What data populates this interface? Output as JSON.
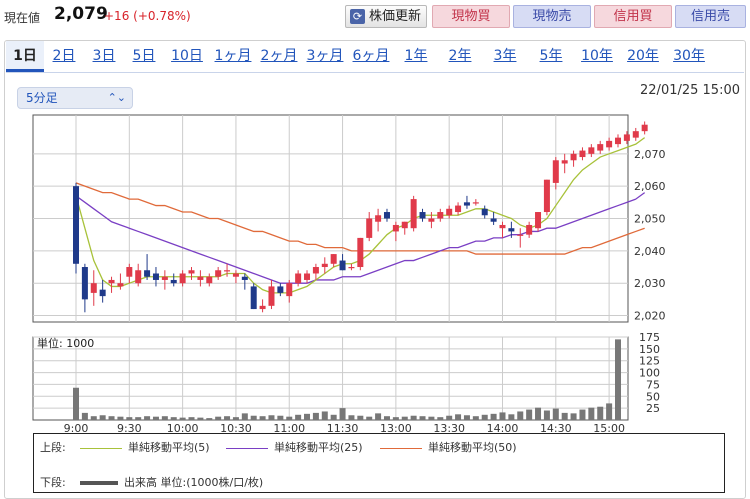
{
  "header": {
    "price_label": "現在値",
    "price_value": "2,079",
    "price_change": "+16 (+0.78%)",
    "refresh_label": "株価更新",
    "buttons": [
      "現物買",
      "現物売",
      "信用買",
      "信用売"
    ]
  },
  "tabs": [
    "1日",
    "2日",
    "3日",
    "5日",
    "10日",
    "1ヶ月",
    "2ヶ月",
    "3ヶ月",
    "6ヶ月",
    "1年",
    "2年",
    "3年",
    "5年",
    "10年",
    "20年",
    "30年"
  ],
  "active_tab": "1日",
  "interval_select": "5分足",
  "datetime": "22/01/25 15:00",
  "colors": {
    "up": "#e03a4a",
    "down": "#1f3a8a",
    "ma5": "#a8c23a",
    "ma25": "#7a3fc4",
    "ma50": "#e06a3a",
    "volume": "#777777",
    "grid": "#cccccc"
  },
  "legend": {
    "upper_label": "上段:",
    "ma5": "単純移動平均(5)",
    "ma25": "単純移動平均(25)",
    "ma50": "単純移動平均(50)",
    "lower_label": "下段:",
    "volume": "出来高 単位:(1000株/口/枚)"
  },
  "chart_data": {
    "type": "candlestick",
    "x_tick_labels": [
      "9:00",
      "9:30",
      "10:00",
      "10:30",
      "11:00",
      "11:30",
      "13:00",
      "13:30",
      "14:00",
      "14:30",
      "15:00"
    ],
    "price_axis": {
      "ylim": [
        2018,
        2082
      ],
      "ticks": [
        2020,
        2030,
        2040,
        2050,
        2060,
        2070
      ]
    },
    "volume_axis": {
      "label": "単位: 1000",
      "ylim": [
        0,
        175
      ],
      "ticks": [
        25,
        50,
        75,
        100,
        125,
        150,
        175
      ]
    },
    "candles": [
      [
        2060,
        2061,
        2033,
        2036
      ],
      [
        2035,
        2036,
        2021,
        2025
      ],
      [
        2027,
        2034,
        2023,
        2030
      ],
      [
        2028,
        2031,
        2024,
        2026
      ],
      [
        2030,
        2032,
        2027,
        2031
      ],
      [
        2029,
        2033,
        2028,
        2030
      ],
      [
        2032,
        2036,
        2030,
        2035
      ],
      [
        2030,
        2036,
        2029,
        2034
      ],
      [
        2034,
        2039,
        2031,
        2032
      ],
      [
        2033,
        2035,
        2029,
        2031
      ],
      [
        2031,
        2034,
        2028,
        2032
      ],
      [
        2031,
        2033,
        2029,
        2030
      ],
      [
        2030,
        2034,
        2029,
        2033
      ],
      [
        2033,
        2035,
        2031,
        2034
      ],
      [
        2031,
        2034,
        2029,
        2032
      ],
      [
        2030,
        2033,
        2029,
        2032
      ],
      [
        2032,
        2035,
        2031,
        2034
      ],
      [
        2034,
        2036,
        2032,
        2034
      ],
      [
        2032,
        2034,
        2030,
        2033
      ],
      [
        2032,
        2033,
        2028,
        2031
      ],
      [
        2029,
        2030,
        2022,
        2022
      ],
      [
        2022,
        2025,
        2021,
        2023
      ],
      [
        2023,
        2031,
        2022,
        2029
      ],
      [
        2029,
        2030,
        2026,
        2027
      ],
      [
        2026,
        2031,
        2024,
        2030
      ],
      [
        2030,
        2034,
        2029,
        2033
      ],
      [
        2031,
        2034,
        2030,
        2033
      ],
      [
        2033,
        2036,
        2031,
        2035
      ],
      [
        2035,
        2038,
        2033,
        2036
      ],
      [
        2036,
        2039,
        2035,
        2039
      ],
      [
        2037,
        2039,
        2034,
        2034
      ],
      [
        2035,
        2036,
        2034,
        2035
      ],
      [
        2035,
        2044,
        2034,
        2044
      ],
      [
        2044,
        2052,
        2043,
        2050
      ],
      [
        2049,
        2053,
        2046,
        2051
      ],
      [
        2052,
        2053,
        2049,
        2050
      ],
      [
        2046,
        2049,
        2043,
        2048
      ],
      [
        2047,
        2049,
        2045,
        2049
      ],
      [
        2047,
        2057,
        2046,
        2056
      ],
      [
        2052,
        2053,
        2049,
        2050
      ],
      [
        2049,
        2052,
        2047,
        2050
      ],
      [
        2050,
        2053,
        2049,
        2052
      ],
      [
        2051,
        2054,
        2050,
        2053
      ],
      [
        2052,
        2055,
        2051,
        2054
      ],
      [
        2055,
        2057,
        2053,
        2054
      ],
      [
        2055,
        2056,
        2054,
        2055
      ],
      [
        2053,
        2054,
        2050,
        2051
      ],
      [
        2050,
        2052,
        2048,
        2049
      ],
      [
        2047,
        2049,
        2044,
        2048
      ],
      [
        2047,
        2049,
        2044,
        2046
      ],
      [
        2045,
        2047,
        2041,
        2045
      ],
      [
        2045,
        2049,
        2044,
        2048
      ],
      [
        2047,
        2052,
        2046,
        2052
      ],
      [
        2052,
        2062,
        2051,
        2062
      ],
      [
        2061,
        2069,
        2059,
        2068
      ],
      [
        2067,
        2070,
        2064,
        2068
      ],
      [
        2068,
        2071,
        2066,
        2070
      ],
      [
        2069,
        2072,
        2068,
        2071
      ],
      [
        2070,
        2073,
        2069,
        2072
      ],
      [
        2071,
        2074,
        2070,
        2073
      ],
      [
        2072,
        2075,
        2071,
        2074
      ],
      [
        2073,
        2076,
        2072,
        2075
      ],
      [
        2074,
        2077,
        2073,
        2076
      ],
      [
        2075,
        2078,
        2074,
        2077
      ],
      [
        2077,
        2080,
        2076,
        2079
      ]
    ],
    "ma5": [
      2057,
      2047,
      2037,
      2031,
      2029,
      2029,
      2030,
      2031,
      2032,
      2032,
      2032,
      2032,
      2032,
      2032,
      2032,
      2032,
      2032,
      2033,
      2033,
      2033,
      2030,
      2028,
      2027,
      2027,
      2027,
      2028,
      2029,
      2031,
      2033,
      2035,
      2036,
      2036,
      2037,
      2039,
      2042,
      2045,
      2047,
      2048,
      2050,
      2051,
      2051,
      2051,
      2051,
      2051,
      2052,
      2053,
      2053,
      2052,
      2051,
      2050,
      2048,
      2047,
      2048,
      2050,
      2054,
      2058,
      2062,
      2065,
      2067,
      2069,
      2070,
      2071,
      2072,
      2073,
      2075
    ],
    "ma25": [
      2057,
      2055,
      2053,
      2051,
      2049,
      2048,
      2047,
      2046,
      2045,
      2044,
      2043,
      2042,
      2041,
      2040,
      2039,
      2038,
      2037,
      2036,
      2035,
      2034,
      2033,
      2032,
      2031,
      2030,
      2030,
      2030,
      2030,
      2031,
      2031,
      2031,
      2032,
      2032,
      2032,
      2033,
      2034,
      2035,
      2036,
      2037,
      2037,
      2038,
      2039,
      2040,
      2041,
      2041,
      2042,
      2043,
      2043,
      2044,
      2044,
      2045,
      2045,
      2046,
      2046,
      2047,
      2047,
      2048,
      2049,
      2050,
      2051,
      2052,
      2053,
      2054,
      2055,
      2056,
      2058
    ],
    "ma50": [
      2061,
      2060,
      2059,
      2058,
      2058,
      2057,
      2056,
      2056,
      2055,
      2054,
      2054,
      2053,
      2052,
      2052,
      2051,
      2050,
      2050,
      2049,
      2048,
      2047,
      2046,
      2046,
      2045,
      2044,
      2043,
      2043,
      2042,
      2042,
      2041,
      2041,
      2041,
      2040,
      2040,
      2040,
      2040,
      2040,
      2040,
      2040,
      2040,
      2040,
      2040,
      2040,
      2040,
      2040,
      2040,
      2039,
      2039,
      2039,
      2039,
      2039,
      2039,
      2039,
      2039,
      2039,
      2039,
      2039,
      2040,
      2041,
      2041,
      2042,
      2043,
      2044,
      2045,
      2046,
      2047
    ],
    "volume": [
      68,
      15,
      8,
      10,
      8,
      7,
      6,
      6,
      8,
      7,
      8,
      6,
      5,
      6,
      5,
      4,
      7,
      8,
      6,
      14,
      9,
      8,
      10,
      9,
      7,
      11,
      13,
      15,
      18,
      11,
      25,
      10,
      9,
      7,
      14,
      8,
      6,
      7,
      9,
      8,
      7,
      6,
      9,
      12,
      10,
      8,
      11,
      13,
      16,
      12,
      18,
      22,
      26,
      20,
      24,
      15,
      14,
      22,
      26,
      28,
      35,
      170,
      0,
      0,
      0
    ]
  }
}
